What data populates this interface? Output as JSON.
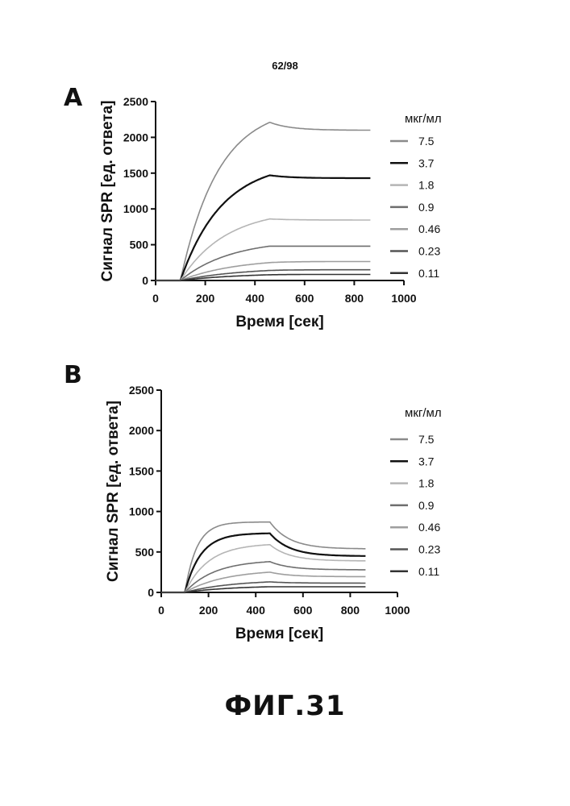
{
  "page_number": "62/98",
  "figure_label": "ФИГ.31",
  "chart_data": [
    {
      "panel": "A",
      "type": "line",
      "xlabel": "Время [сек]",
      "ylabel": "Сигнал SPR [ед. ответа]",
      "xlim": [
        0,
        1000
      ],
      "ylim": [
        0,
        2500
      ],
      "xticks": [
        "0",
        "200",
        "400",
        "600",
        "800",
        "1000"
      ],
      "yticks": [
        "0",
        "500",
        "1000",
        "1500",
        "2000",
        "2500"
      ],
      "grid": false,
      "legend_title": "мкг/мл",
      "legend_position": "right",
      "association_start": 100,
      "dissociation_start": 460,
      "end_time": 865,
      "series": [
        {
          "name": "7.5",
          "color": "#8a8a8a",
          "peak": 2210,
          "end": 2100,
          "k": 0.0065
        },
        {
          "name": "3.7",
          "color": "#111111",
          "peak": 1470,
          "end": 1430,
          "k": 0.006
        },
        {
          "name": "1.8",
          "color": "#b5b5b5",
          "peak": 860,
          "end": 845,
          "k": 0.0055
        },
        {
          "name": "0.9",
          "color": "#6e6e6e",
          "peak": 480,
          "end": 480,
          "k": 0.005
        },
        {
          "name": "0.46",
          "color": "#9e9e9e",
          "peak": 250,
          "end": 265,
          "k": 0.0045
        },
        {
          "name": "0.23",
          "color": "#555555",
          "peak": 140,
          "end": 150,
          "k": 0.004
        },
        {
          "name": "0.11",
          "color": "#333333",
          "peak": 80,
          "end": 85,
          "k": 0.004
        }
      ]
    },
    {
      "panel": "B",
      "type": "line",
      "xlabel": "Время [сек]",
      "ylabel": "Сигнал SPR [ед. ответа]",
      "xlim": [
        0,
        1000
      ],
      "ylim": [
        0,
        2500
      ],
      "xticks": [
        "0",
        "200",
        "400",
        "600",
        "800",
        "1000"
      ],
      "yticks": [
        "0",
        "500",
        "1000",
        "1500",
        "2000",
        "2500"
      ],
      "grid": false,
      "legend_title": "мкг/мл",
      "legend_position": "right",
      "association_start": 100,
      "dissociation_start": 460,
      "end_time": 865,
      "series": [
        {
          "name": "7.5",
          "color": "#8a8a8a",
          "peak": 870,
          "end": 540,
          "k": 0.02
        },
        {
          "name": "3.7",
          "color": "#111111",
          "peak": 730,
          "end": 450,
          "k": 0.015
        },
        {
          "name": "1.8",
          "color": "#b5b5b5",
          "peak": 590,
          "end": 390,
          "k": 0.01
        },
        {
          "name": "0.9",
          "color": "#6e6e6e",
          "peak": 380,
          "end": 280,
          "k": 0.008
        },
        {
          "name": "0.46",
          "color": "#9e9e9e",
          "peak": 250,
          "end": 195,
          "k": 0.006
        },
        {
          "name": "0.23",
          "color": "#555555",
          "peak": 130,
          "end": 115,
          "k": 0.005
        },
        {
          "name": "0.11",
          "color": "#333333",
          "peak": 70,
          "end": 70,
          "k": 0.005
        }
      ]
    }
  ]
}
